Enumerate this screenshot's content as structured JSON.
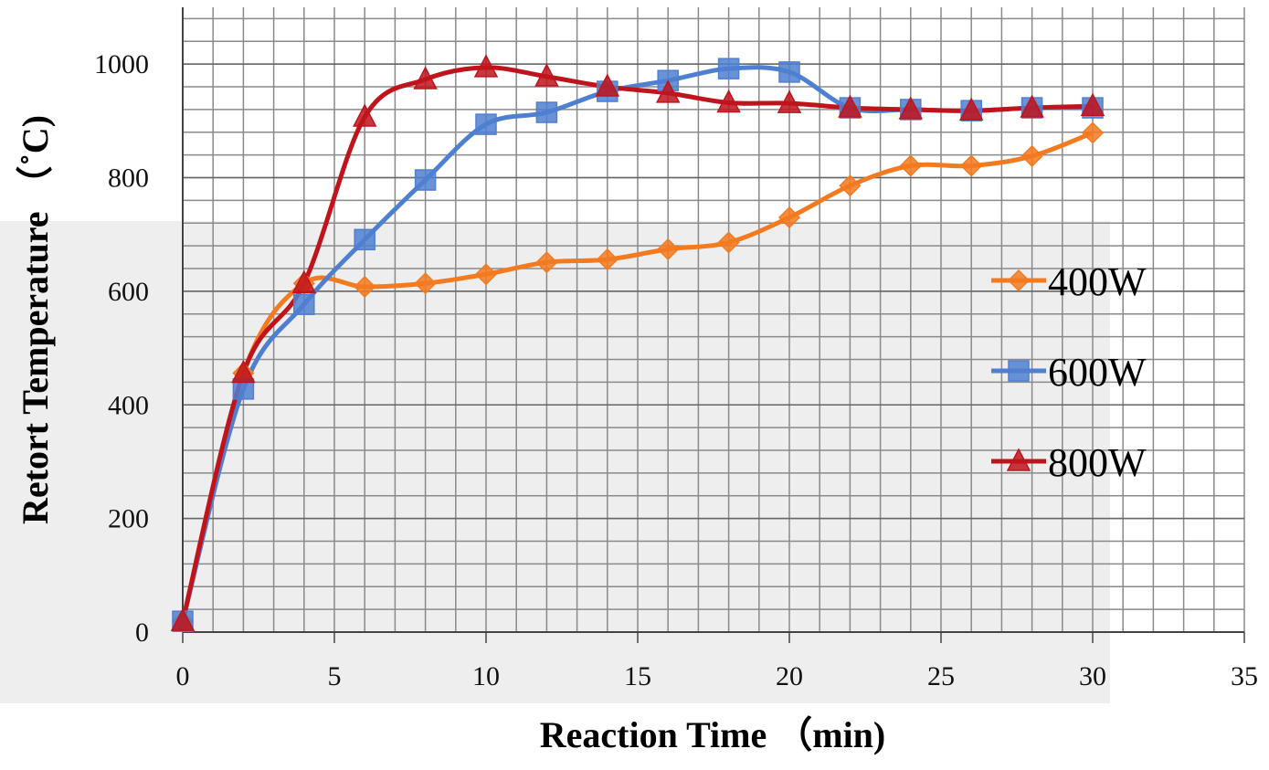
{
  "chart_data": {
    "type": "line",
    "x_label": "Reaction Time （min)",
    "y_label": "Retort Temperature （˚C)",
    "x": [
      0,
      2,
      4,
      6,
      8,
      10,
      12,
      14,
      16,
      18,
      20,
      22,
      24,
      26,
      28,
      30
    ],
    "series": [
      {
        "name": "400W",
        "color": "#f47a20",
        "marker": "diamond",
        "values": [
          19,
          456,
          614,
          608,
          614,
          630,
          651,
          656,
          674,
          686,
          730,
          786,
          821,
          821,
          838,
          879
        ]
      },
      {
        "name": "600W",
        "color": "#4f7fd0",
        "marker": "square",
        "values": [
          19,
          428,
          577,
          691,
          796,
          894,
          915,
          952,
          971,
          992,
          986,
          923,
          920,
          918,
          923,
          923
        ]
      },
      {
        "name": "800W",
        "color": "#c0141c",
        "marker": "triangle",
        "values": [
          19,
          456,
          614,
          907,
          973,
          994,
          978,
          960,
          949,
          932,
          931,
          923,
          920,
          918,
          923,
          926
        ]
      }
    ],
    "xlim": [
      0,
      35
    ],
    "xticks": [
      0,
      5,
      10,
      15,
      20,
      25,
      30,
      35
    ],
    "ylim": [
      0,
      1100
    ],
    "yticks": [
      0,
      200,
      400,
      600,
      800,
      1000
    ],
    "x_minor_step": 1,
    "y_minor_step": 40,
    "grid": true,
    "legend": "right"
  }
}
